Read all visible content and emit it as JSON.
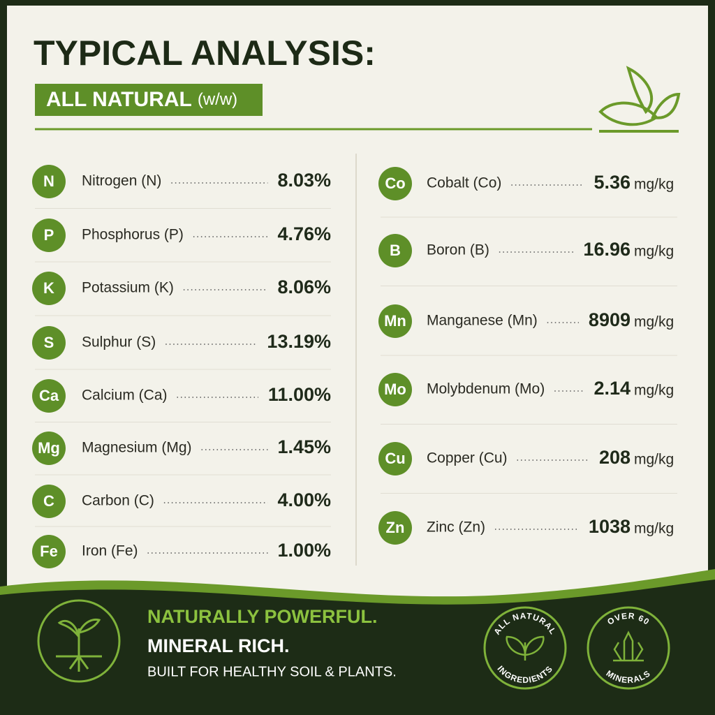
{
  "header": {
    "title": "TYPICAL ANALYSIS:",
    "subtitle": "ALL NATURAL",
    "subtitle_note": "(w/w)"
  },
  "macro": [
    {
      "symbol": "N",
      "name": "Nitrogen (N)",
      "value": "8.03%"
    },
    {
      "symbol": "P",
      "name": "Phosphorus (P)",
      "value": "4.76%"
    },
    {
      "symbol": "K",
      "name": "Potassium (K)",
      "value": "8.06%"
    },
    {
      "symbol": "S",
      "name": "Sulphur (S)",
      "value": "13.19%"
    },
    {
      "symbol": "Ca",
      "name": "Calcium (Ca)",
      "value": "11.00%"
    },
    {
      "symbol": "Mg",
      "name": "Magnesium (Mg)",
      "value": "1.45%"
    },
    {
      "symbol": "C",
      "name": "Carbon (C)",
      "value": "4.00%"
    },
    {
      "symbol": "Fe",
      "name": "Iron (Fe)",
      "value": "1.00%"
    }
  ],
  "micro": [
    {
      "symbol": "Co",
      "name": "Cobalt (Co)",
      "value": "5.36",
      "unit": "mg/kg"
    },
    {
      "symbol": "B",
      "name": "Boron (B)",
      "value": "16.96",
      "unit": "mg/kg"
    },
    {
      "symbol": "Mn",
      "name": "Manganese (Mn)",
      "value": "8909",
      "unit": "mg/kg"
    },
    {
      "symbol": "Mo",
      "name": "Molybdenum (Mo)",
      "value": "2.14",
      "unit": "mg/kg"
    },
    {
      "symbol": "Cu",
      "name": "Copper (Cu)",
      "value": "208",
      "unit": "mg/kg"
    },
    {
      "symbol": "Zn",
      "name": "Zinc (Zn)",
      "value": "1038",
      "unit": "mg/kg"
    }
  ],
  "footer": {
    "line1": "NATURALLY POWERFUL.",
    "line2": "MINERAL RICH.",
    "line3": "BUILT FOR HEALTHY SOIL & PLANTS."
  },
  "badges": [
    {
      "top": "ALL NATURAL",
      "bottom": "INGREDIENTS"
    },
    {
      "top": "OVER 60",
      "bottom": "MINERALS"
    }
  ]
}
